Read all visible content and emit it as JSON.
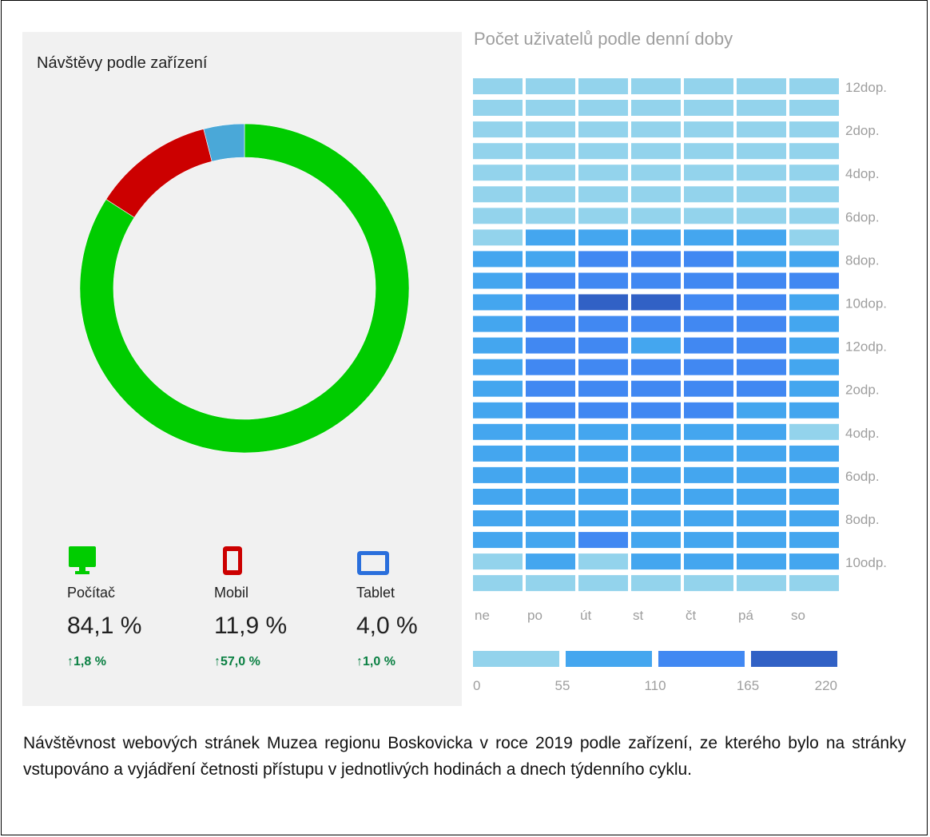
{
  "chart_data": [
    {
      "type": "pie",
      "title": "Návštěvy podle zařízení",
      "slices": [
        {
          "label": "Počítač",
          "value": 84.1,
          "value_text": "84,1 %",
          "change_text": "1,8 %",
          "color": "#00cc00",
          "icon": "desktop-icon"
        },
        {
          "label": "Mobil",
          "value": 11.9,
          "value_text": "11,9 %",
          "change_text": "57,0 %",
          "color": "#cc0000",
          "icon": "mobile-icon"
        },
        {
          "label": "Tablet",
          "value": 4.0,
          "value_text": "4,0 %",
          "change_text": "1,0 %",
          "color": "#4aa8d8",
          "icon": "tablet-icon"
        }
      ],
      "donut": true,
      "change_arrow": "up"
    },
    {
      "type": "heatmap",
      "title": "Počet uživatelů podle denní doby",
      "columns": [
        "ne",
        "po",
        "út",
        "st",
        "čt",
        "pá",
        "so"
      ],
      "row_labels": [
        "12dop.",
        "2dop.",
        "4dop.",
        "6dop.",
        "8dop.",
        "10dop.",
        "12odp.",
        "2odp.",
        "4odp.",
        "6odp.",
        "8odp.",
        "10odp."
      ],
      "rows_per_label": 2,
      "legend_ticks": [
        "0",
        "55",
        "110",
        "165",
        "220"
      ],
      "scale_colors": [
        "#93d3ec",
        "#44a6ef",
        "#4188f2",
        "#3161c5"
      ],
      "values": [
        [
          5,
          5,
          5,
          5,
          5,
          5,
          5
        ],
        [
          5,
          5,
          5,
          5,
          5,
          5,
          5
        ],
        [
          5,
          5,
          5,
          5,
          5,
          5,
          5
        ],
        [
          5,
          5,
          5,
          5,
          5,
          5,
          5
        ],
        [
          5,
          5,
          5,
          5,
          5,
          5,
          5
        ],
        [
          5,
          5,
          5,
          5,
          5,
          5,
          5
        ],
        [
          5,
          5,
          5,
          5,
          5,
          5,
          5
        ],
        [
          5,
          70,
          70,
          70,
          70,
          70,
          5
        ],
        [
          70,
          70,
          130,
          130,
          130,
          70,
          70
        ],
        [
          70,
          130,
          130,
          130,
          130,
          130,
          130
        ],
        [
          70,
          130,
          200,
          200,
          130,
          130,
          70
        ],
        [
          70,
          130,
          130,
          130,
          130,
          130,
          70
        ],
        [
          70,
          130,
          130,
          70,
          130,
          130,
          70
        ],
        [
          70,
          130,
          130,
          130,
          130,
          130,
          70
        ],
        [
          70,
          130,
          130,
          130,
          130,
          130,
          70
        ],
        [
          70,
          130,
          130,
          130,
          130,
          70,
          70
        ],
        [
          70,
          70,
          70,
          70,
          70,
          70,
          5
        ],
        [
          70,
          70,
          70,
          70,
          70,
          70,
          70
        ],
        [
          70,
          70,
          70,
          70,
          70,
          70,
          70
        ],
        [
          70,
          70,
          70,
          70,
          70,
          70,
          70
        ],
        [
          70,
          70,
          70,
          70,
          70,
          70,
          70
        ],
        [
          70,
          70,
          130,
          70,
          70,
          70,
          70
        ],
        [
          5,
          70,
          5,
          70,
          70,
          70,
          70
        ],
        [
          5,
          5,
          5,
          5,
          5,
          5,
          5
        ]
      ]
    }
  ],
  "caption": "Návštěvnost webových stránek Muzea regionu Boskovicka v roce 2019 podle zařízení, ze kterého bylo na stránky vstupováno a vyjádření četnosti přístupu v jednotlivých hodinách a dnech týdenního cyklu."
}
